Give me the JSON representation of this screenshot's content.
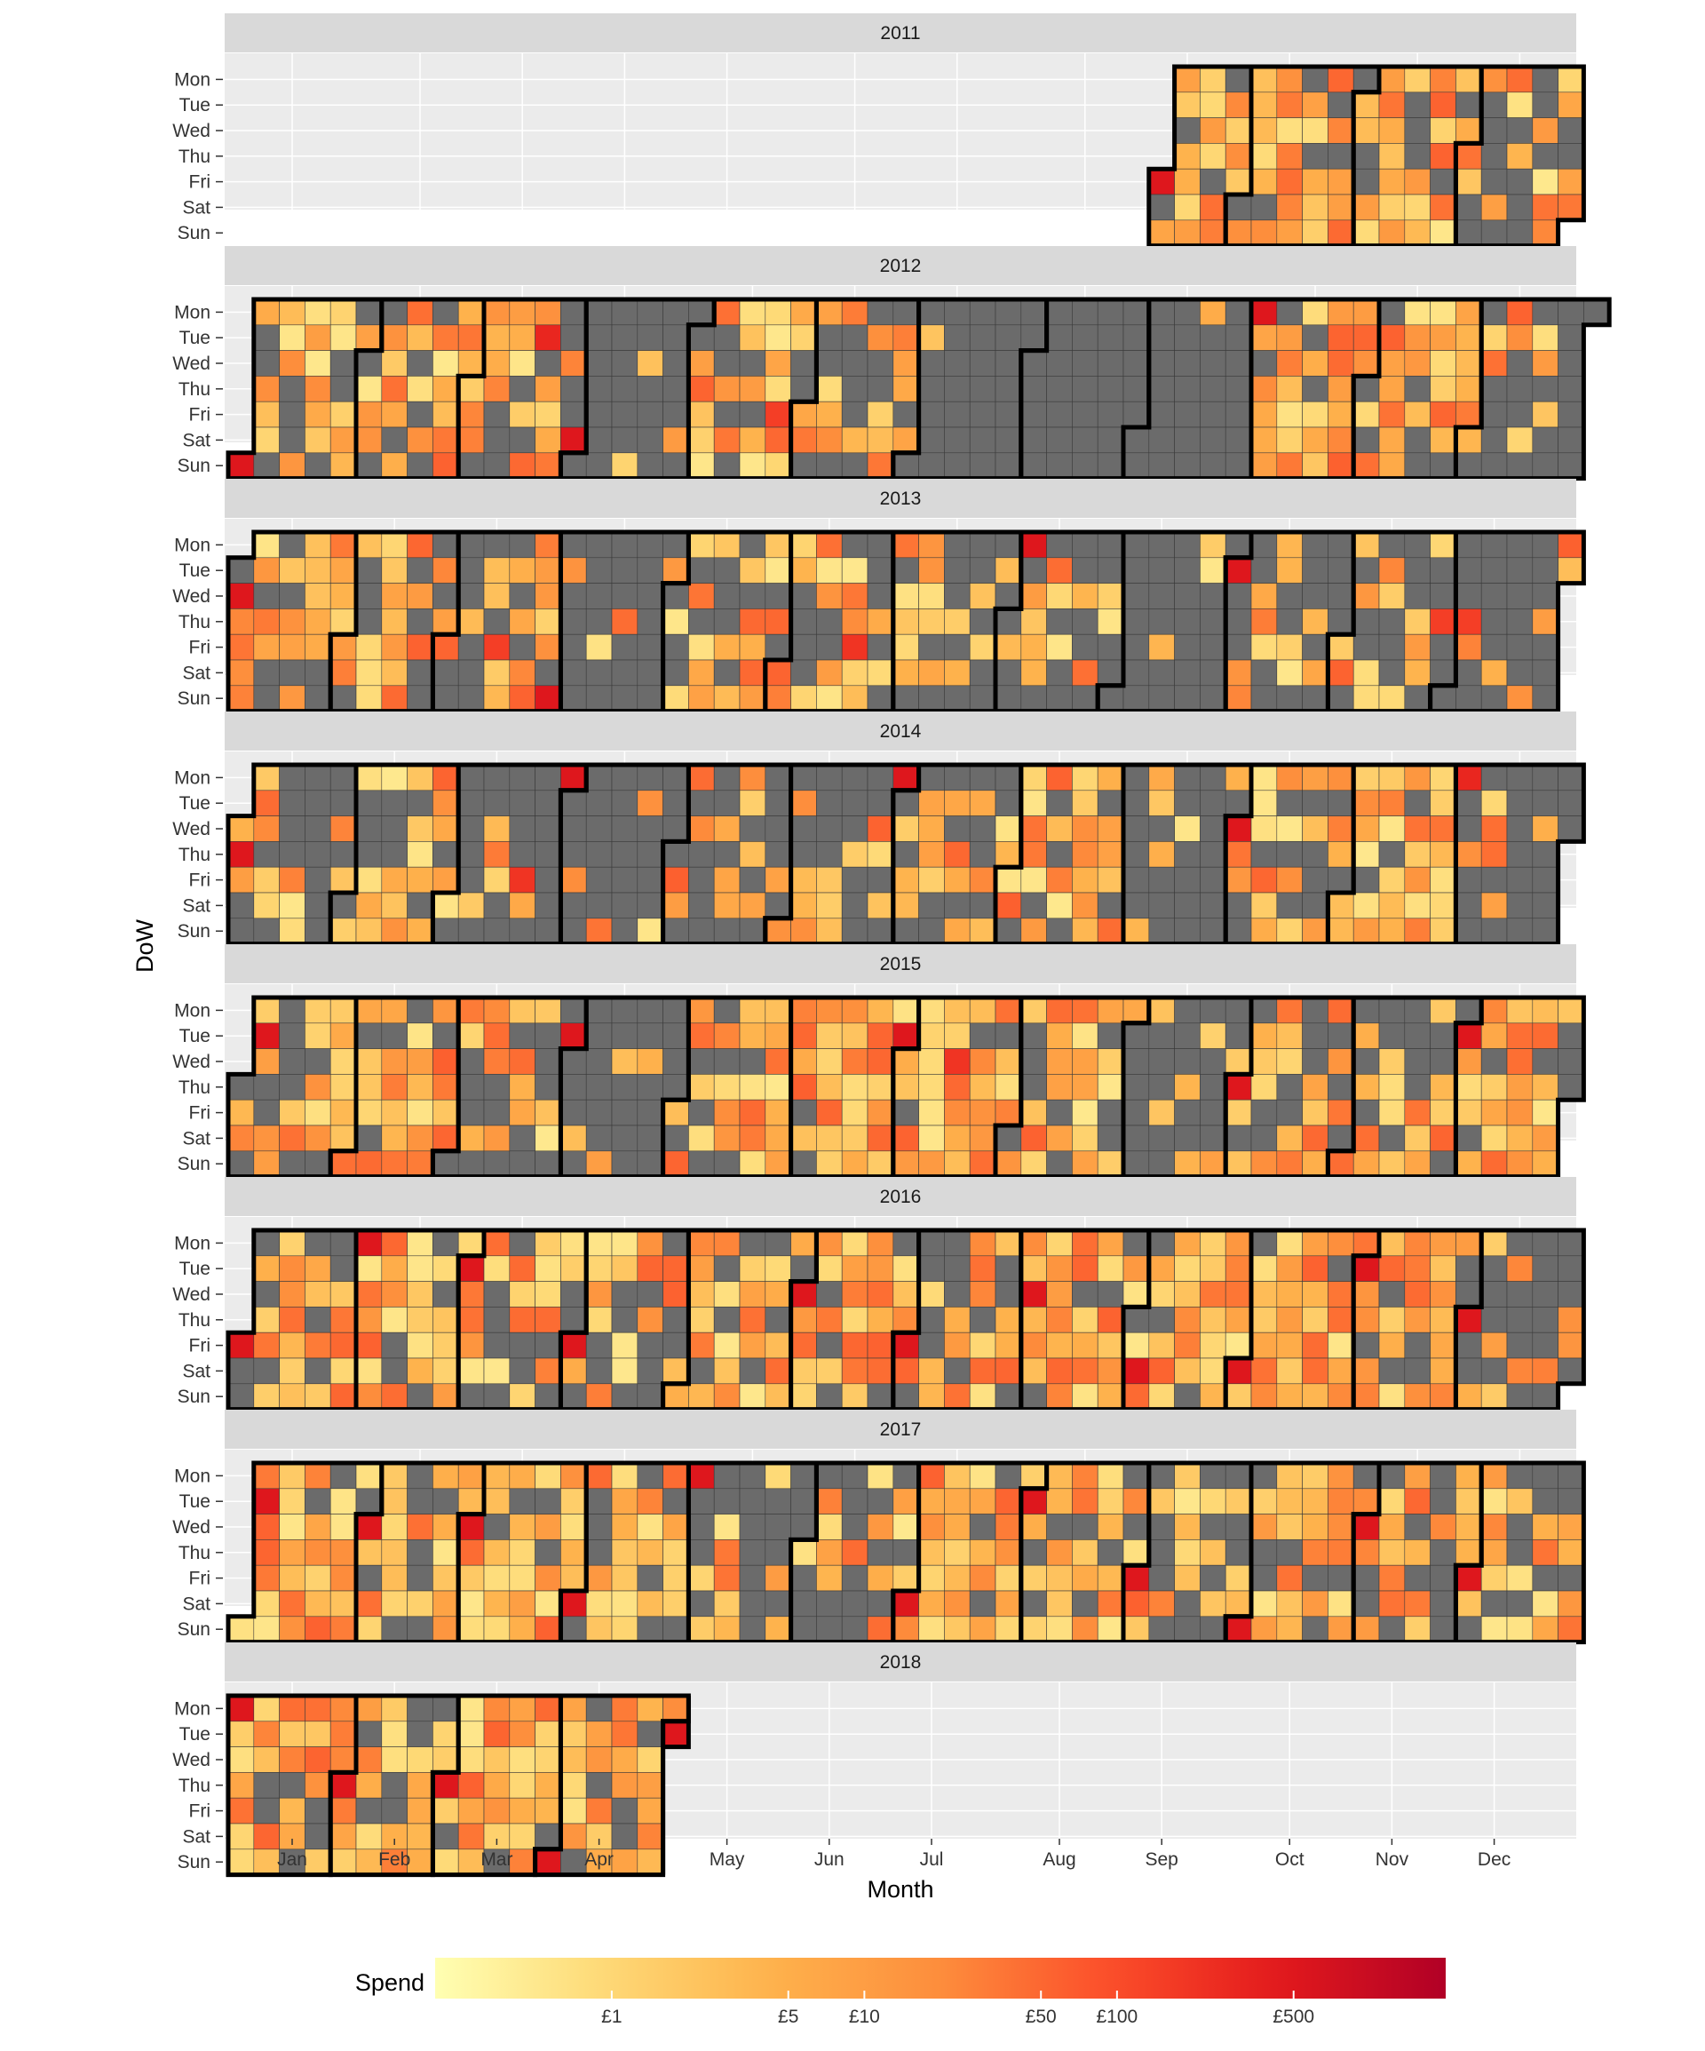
{
  "chart_data": {
    "type": "heatmap",
    "title": "",
    "xlabel": "Month",
    "ylabel": "DoW",
    "years": [
      "2011",
      "2012",
      "2013",
      "2014",
      "2015",
      "2016",
      "2017",
      "2018"
    ],
    "months": [
      "Jan",
      "Feb",
      "Mar",
      "Apr",
      "May",
      "Jun",
      "Jul",
      "Aug",
      "Sep",
      "Oct",
      "Nov",
      "Dec"
    ],
    "days": [
      "Mon",
      "Tue",
      "Wed",
      "Thu",
      "Fri",
      "Sat",
      "Sun"
    ],
    "grid": true,
    "data_start": "2011-09-09",
    "data_end": "2018-05-01",
    "zero_spend_color": "#6B6B6B",
    "panel_bg": "#EBEBEB",
    "strip_bg": "#D9D9D9",
    "legend": {
      "title": "Spend",
      "position": "bottom",
      "scale": "log",
      "ticks": [
        "£1",
        "£5",
        "£10",
        "£50",
        "£100",
        "£500"
      ],
      "tick_values": [
        1,
        5,
        10,
        50,
        100,
        500
      ],
      "range": [
        0.2,
        2000
      ],
      "colors": [
        "#FFFFB2",
        "#FED976",
        "#FEB24C",
        "#FD8D3C",
        "#FC4E2A",
        "#E31A1C",
        "#B10026"
      ]
    },
    "monthly_activity": {
      "2011": [
        0,
        0,
        0,
        0,
        0,
        0,
        0,
        0,
        0.9,
        0.85,
        0.8,
        0.5
      ],
      "2012": [
        0.55,
        0.6,
        0.55,
        0.05,
        0.5,
        0.45,
        0.05,
        0.0,
        0.02,
        0.85,
        0.85,
        0.4
      ],
      "2013": [
        0.7,
        0.65,
        0.4,
        0.1,
        0.6,
        0.55,
        0.7,
        0.5,
        0.05,
        0.45,
        0.45,
        0.3
      ],
      "2014": [
        0.45,
        0.55,
        0.3,
        0.1,
        0.35,
        0.4,
        0.6,
        0.85,
        0.25,
        0.7,
        0.9,
        0.2
      ],
      "2015": [
        0.75,
        0.8,
        0.45,
        0.2,
        0.6,
        0.8,
        0.85,
        0.75,
        0.1,
        0.7,
        0.65,
        0.8
      ],
      "2016": [
        0.7,
        0.8,
        0.65,
        0.5,
        0.7,
        0.65,
        0.7,
        0.7,
        0.9,
        0.9,
        0.75,
        0.3
      ],
      "2017": [
        0.75,
        0.65,
        0.7,
        0.7,
        0.4,
        0.6,
        0.9,
        0.65,
        0.55,
        0.65,
        0.55,
        0.55
      ],
      "2018": [
        0.85,
        0.75,
        0.85,
        0.75,
        0,
        0,
        0,
        0,
        0,
        0,
        0,
        0
      ]
    },
    "notable_high_spend_days": [
      {
        "date": "2011-09-09",
        "spend": 500
      },
      {
        "date": "2012-01-01",
        "spend": 500
      },
      {
        "date": "2012-03-20",
        "spend": 300
      },
      {
        "date": "2012-03-31",
        "spend": 500
      },
      {
        "date": "2012-05-25",
        "spend": 150
      },
      {
        "date": "2012-10-01",
        "spend": 500
      },
      {
        "date": "2013-01-02",
        "spend": 500
      },
      {
        "date": "2013-03-15",
        "spend": 150
      },
      {
        "date": "2013-03-31",
        "spend": 500
      },
      {
        "date": "2013-06-21",
        "spend": 200
      },
      {
        "date": "2013-08-05",
        "spend": 500
      },
      {
        "date": "2013-10-01",
        "spend": 500
      },
      {
        "date": "2013-11-28",
        "spend": 150
      },
      {
        "date": "2013-12-05",
        "spend": 150
      },
      {
        "date": "2014-01-02",
        "spend": 500
      },
      {
        "date": "2014-03-21",
        "spend": 200
      },
      {
        "date": "2014-03-31",
        "spend": 500
      },
      {
        "date": "2014-06-30",
        "spend": 500
      },
      {
        "date": "2014-10-01",
        "spend": 500
      },
      {
        "date": "2014-12-01",
        "spend": 300
      },
      {
        "date": "2015-01-06",
        "spend": 500
      },
      {
        "date": "2015-03-31",
        "spend": 500
      },
      {
        "date": "2015-06-30",
        "spend": 500
      },
      {
        "date": "2015-07-15",
        "spend": 200
      },
      {
        "date": "2015-10-01",
        "spend": 500
      },
      {
        "date": "2015-12-01",
        "spend": 500
      },
      {
        "date": "2016-01-01",
        "spend": 500
      },
      {
        "date": "2016-02-01",
        "spend": 500
      },
      {
        "date": "2016-03-01",
        "spend": 500
      },
      {
        "date": "2016-04-01",
        "spend": 500
      },
      {
        "date": "2016-06-01",
        "spend": 500
      },
      {
        "date": "2016-07-01",
        "spend": 500
      },
      {
        "date": "2016-08-03",
        "spend": 500
      },
      {
        "date": "2016-09-03",
        "spend": 500
      },
      {
        "date": "2016-10-01",
        "spend": 500
      },
      {
        "date": "2016-11-01",
        "spend": 500
      },
      {
        "date": "2016-12-01",
        "spend": 500
      },
      {
        "date": "2017-01-03",
        "spend": 500
      },
      {
        "date": "2017-02-01",
        "spend": 500
      },
      {
        "date": "2017-03-01",
        "spend": 500
      },
      {
        "date": "2017-04-01",
        "spend": 500
      },
      {
        "date": "2017-05-01",
        "spend": 500
      },
      {
        "date": "2017-07-01",
        "spend": 500
      },
      {
        "date": "2017-08-01",
        "spend": 500
      },
      {
        "date": "2017-09-01",
        "spend": 500
      },
      {
        "date": "2017-10-01",
        "spend": 500
      },
      {
        "date": "2017-11-01",
        "spend": 500
      },
      {
        "date": "2017-12-01",
        "spend": 500
      },
      {
        "date": "2018-01-01",
        "spend": 500
      },
      {
        "date": "2018-02-01",
        "spend": 500
      },
      {
        "date": "2018-03-01",
        "spend": 500
      },
      {
        "date": "2018-04-01",
        "spend": 500
      },
      {
        "date": "2018-05-01",
        "spend": 500
      }
    ]
  }
}
